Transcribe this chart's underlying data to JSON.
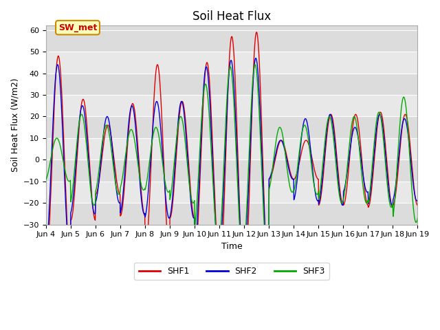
{
  "title": "Soil Heat Flux",
  "ylabel": "Soil Heat Flux (W/m2)",
  "xlabel": "Time",
  "ylim": [
    -30,
    62
  ],
  "yticks": [
    -30,
    -20,
    -10,
    0,
    10,
    20,
    30,
    40,
    50,
    60
  ],
  "colors": {
    "SHF1": "#dd0000",
    "SHF2": "#0000dd",
    "SHF3": "#00aa00"
  },
  "annotation_text": "SW_met",
  "annotation_bg": "#ffffbb",
  "annotation_border": "#cc8800",
  "bg_color": "#dcdcdc",
  "band_color1": "#dcdcdc",
  "band_color2": "#e8e8e8",
  "x_tick_labels": [
    "Jun 4",
    "Jun 5",
    "Jun 6",
    "Jun 7",
    "Jun 8",
    "Jun 9",
    "Jun 10",
    "Jun 11",
    "Jun 12",
    "Jun 13",
    "Jun 14",
    "Jun 15",
    "Jun 16",
    "Jun 17",
    "Jun 18",
    "Jun 19"
  ],
  "n_days": 15,
  "pts_per_day": 96,
  "title_fontsize": 12,
  "label_fontsize": 9,
  "tick_fontsize": 8,
  "day_amps_shf1": [
    48,
    28,
    16,
    26,
    44,
    27,
    45,
    57,
    59,
    9,
    9,
    21,
    21,
    22,
    21
  ],
  "day_amps_shf2": [
    44,
    25,
    20,
    25,
    27,
    27,
    43,
    46,
    47,
    9,
    19,
    21,
    15,
    21,
    19
  ],
  "day_amps_shf3": [
    10,
    21,
    16,
    14,
    15,
    20,
    35,
    43,
    44,
    15,
    16,
    20,
    20,
    22,
    29
  ]
}
